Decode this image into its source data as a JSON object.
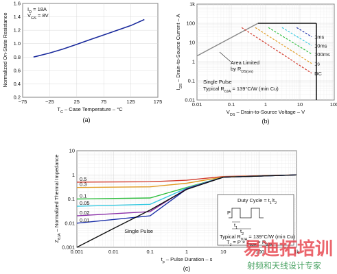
{
  "chart_data": [
    {
      "type": "line",
      "panel": "(a)",
      "ylabel": "Normalized On-State Resistance",
      "xlabel": "T C – Case Temperature – °C",
      "xlabel_parts": {
        "main": "T",
        "sub": "C",
        "rest": " – Case Temperature – °C"
      },
      "xlim": [
        -75,
        175
      ],
      "ylim": [
        0.2,
        1.6
      ],
      "xticks": [
        -75,
        -25,
        25,
        75,
        125,
        175
      ],
      "xtick_labels": [
        "−75",
        "−25",
        "25",
        "75",
        "125",
        "175"
      ],
      "yticks": [
        0.2,
        0.4,
        0.6,
        0.8,
        1.0,
        1.2,
        1.4,
        1.6
      ],
      "ytick_labels": [
        "0.2",
        "0.4",
        "0.6",
        "0.8",
        "1.0",
        "1.2",
        "1.4",
        "1.6"
      ],
      "annotation_id": {
        "main": "I",
        "sub": "D",
        "rest": " = 18A"
      },
      "annotation_vgs": {
        "main": "V",
        "sub": "GS",
        "rest": " = 8V"
      },
      "color": "#1a2a9c",
      "x": [
        -55,
        -25,
        0,
        25,
        50,
        75,
        100,
        125,
        150
      ],
      "y": [
        0.8,
        0.86,
        0.92,
        0.99,
        1.06,
        1.13,
        1.2,
        1.27,
        1.36
      ]
    },
    {
      "type": "line",
      "panel": "(b)",
      "scale": "log-log",
      "ylabel": "I DS – Drain-to-Source Current – A",
      "xlabel": "V DS – Drain-to-Source Voltage – V",
      "xlabel_parts": {
        "main": "V",
        "sub": "DS",
        "rest": " – Drain-to-Source Voltage – V"
      },
      "ylabel_parts": {
        "main": "I",
        "sub": "DS",
        "rest": " – Drain-to-Source Current – A"
      },
      "xlim": [
        0.01,
        100
      ],
      "ylim": [
        0.01,
        1000
      ],
      "xticks": [
        0.01,
        0.1,
        1,
        10,
        100
      ],
      "xtick_labels": [
        "0.01",
        "0.1",
        "1",
        "10",
        "100"
      ],
      "yticks": [
        0.01,
        0.1,
        1,
        10,
        100,
        1000
      ],
      "ytick_labels": [
        "0.01",
        "0.1",
        "1",
        "10",
        "100",
        "1k"
      ],
      "series": [
        {
          "name": "1ms",
          "color": "#1b2fa8",
          "x": [
            8,
            22
          ],
          "y": [
            60,
            20
          ]
        },
        {
          "name": "10ms",
          "color": "#33c8e0",
          "x": [
            3,
            22
          ],
          "y": [
            60,
            7
          ]
        },
        {
          "name": "100ms",
          "color": "#2fbf3f",
          "x": [
            1.2,
            22
          ],
          "y": [
            60,
            2.5
          ]
        },
        {
          "name": "1s",
          "color": "#e09a22",
          "x": [
            0.5,
            22
          ],
          "y": [
            60,
            0.8
          ]
        },
        {
          "name": "DC",
          "color": "#d23a2c",
          "x": [
            0.2,
            22
          ],
          "y": [
            60,
            0.25
          ]
        }
      ],
      "limit_line": {
        "x": [
          0.01,
          0.6
        ],
        "y": [
          2,
          100
        ],
        "color": "#888888"
      },
      "current_limit": 100,
      "voltage_limit": 30,
      "annotation_limited": "Area Limited",
      "annotation_limited_by": {
        "main": "by R",
        "sub": "DS(on)",
        "rest": ""
      },
      "annotation_pulse": "Single Pulse",
      "annotation_typ": {
        "main": "Typical R",
        "sub": "θJA",
        "rest": " = 139°C/W (min Cu)"
      }
    },
    {
      "type": "line",
      "panel": "(c)",
      "scale": "log-log",
      "ylabel": "Z θJA – Normalized Thermal Impedance",
      "xlabel": "t p – Pulse Duration – s",
      "xlabel_parts": {
        "main": "t",
        "sub": "p",
        "rest": " – Pulse Duration – s"
      },
      "ylabel_parts": {
        "main": "Z",
        "sub": "θJA",
        "rest": " – Normalized Thermal Impedance"
      },
      "xlim": [
        0.001,
        1000
      ],
      "ylim": [
        0.001,
        10
      ],
      "xticks": [
        0.001,
        0.01,
        0.1,
        1,
        10,
        100,
        1000
      ],
      "xtick_labels": [
        "0.001",
        "0.01",
        "0.1",
        "1",
        "10",
        "100",
        "1k"
      ],
      "yticks": [
        0.001,
        0.01,
        0.1,
        1,
        10
      ],
      "ytick_labels": [
        "0.001",
        "0.01",
        "0.1",
        "1",
        "10"
      ],
      "series": [
        {
          "name": "0.5",
          "color": "#d23a2c",
          "x": [
            0.001,
            0.1,
            1,
            10,
            1000
          ],
          "y": [
            0.5,
            0.52,
            0.6,
            0.85,
            1.0
          ]
        },
        {
          "name": "0.3",
          "color": "#e09a22",
          "x": [
            0.001,
            0.1,
            1,
            10,
            1000
          ],
          "y": [
            0.3,
            0.32,
            0.45,
            0.82,
            1.0
          ]
        },
        {
          "name": "0.1",
          "color": "#2fbf3f",
          "x": [
            0.001,
            0.1,
            1,
            10,
            1000
          ],
          "y": [
            0.1,
            0.11,
            0.3,
            0.8,
            1.0
          ]
        },
        {
          "name": "0.05",
          "color": "#33c8e0",
          "x": [
            0.001,
            0.1,
            1,
            10,
            1000
          ],
          "y": [
            0.05,
            0.06,
            0.28,
            0.8,
            1.0
          ]
        },
        {
          "name": "0.02",
          "color": "#8a2fa8",
          "x": [
            0.001,
            0.1,
            1,
            10,
            1000
          ],
          "y": [
            0.02,
            0.03,
            0.27,
            0.8,
            1.0
          ]
        },
        {
          "name": "0.01",
          "color": "#1b2fa8",
          "x": [
            0.001,
            0.1,
            1,
            10,
            1000
          ],
          "y": [
            0.01,
            0.02,
            0.26,
            0.8,
            1.0
          ]
        },
        {
          "name": "Single Pulse",
          "color": "#111111",
          "x": [
            0.001,
            0.01,
            0.1,
            1,
            10,
            1000
          ],
          "y": [
            0.001,
            0.006,
            0.035,
            0.25,
            0.8,
            1.0
          ]
        }
      ],
      "inset": {
        "duty": {
          "main": "Duty Cycle = t",
          "sub": "1",
          "mid": "/t",
          "sub2": "2",
          "rest": ""
        },
        "p_label": "P",
        "t1_label": {
          "main": "t",
          "sub": "1"
        },
        "t2_label": {
          "main": "t",
          "sub": "2"
        },
        "typ": {
          "main": "Typical R",
          "sub": "θJA",
          "rest": " = 139°C/W (min Cu)"
        },
        "formula": {
          "main": "T",
          "sub": "J",
          "rest": " = P × Z",
          "sub2": "θJA",
          "rest2": " × R",
          "sub3": "θJA"
        }
      }
    }
  ],
  "watermark": {
    "main": "易迪拓培训",
    "sub": "射频和天线设计专家"
  }
}
